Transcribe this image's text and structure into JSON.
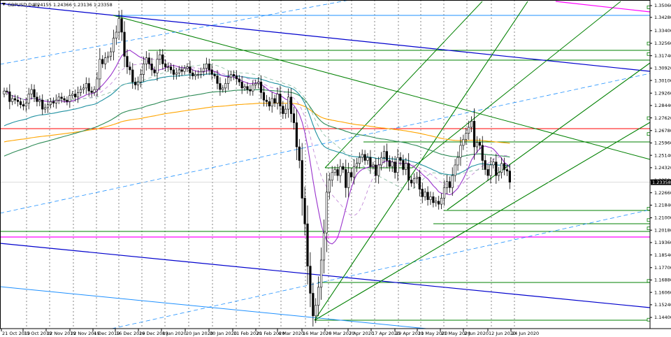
{
  "header": {
    "symbol_label": "GBPUSD,Daily",
    "ohlc_label": "1.24155 1.24366 1.23136 1.23358",
    "arrow_icon": "triangle-down-icon"
  },
  "chart_data": {
    "type": "candlestick",
    "symbol": "GBPUSD",
    "timeframe": "Daily",
    "ohlc_header": {
      "open": 1.24155,
      "high": 1.24366,
      "low": 1.23136,
      "close": 1.23358
    },
    "current_price": 1.23358,
    "current_price_label": "1.23358",
    "ylim": [
      1.138,
      1.361
    ],
    "yticks": [
      "1.35060",
      "1.34280",
      "1.33400",
      "1.32560",
      "1.31740",
      "1.30920",
      "1.30100",
      "1.29260",
      "1.28440",
      "1.27620",
      "1.26780",
      "1.25960",
      "1.25140",
      "1.24320",
      "1.23500",
      "1.22660",
      "1.21840",
      "1.21000",
      "1.20180",
      "1.19360",
      "1.18540",
      "1.17700",
      "1.16880",
      "1.16060",
      "1.15240",
      "1.14400"
    ],
    "xticks": [
      "21 Oct 2019",
      "31 Oct 2019",
      "12 Nov 2019",
      "22 Nov 2019",
      "4 Dec 2019",
      "16 Dec 2019",
      "26 Dec 2019",
      "8 Jan 2020",
      "20 Jan 2020",
      "30 Jan 2020",
      "11 Feb 2020",
      "21 Feb 2020",
      "4 Mar 2020",
      "16 Mar 2020",
      "26 Mar 2020",
      "7 Apr 2020",
      "17 Apr 2020",
      "29 Apr 2020",
      "11 May 2020",
      "21 May 2020",
      "2 Jun 2020",
      "12 Jun 2020",
      "24 Jun 2020"
    ],
    "closes": [
      1.294,
      1.2935,
      1.287,
      1.289,
      1.288,
      1.287,
      1.285,
      1.284,
      1.286,
      1.292,
      1.295,
      1.29,
      1.287,
      1.288,
      1.282,
      1.283,
      1.285,
      1.287,
      1.286,
      1.288,
      1.29,
      1.289,
      1.288,
      1.287,
      1.291,
      1.292,
      1.29,
      1.293,
      1.295,
      1.296,
      1.299,
      1.294,
      1.293,
      1.295,
      1.302,
      1.315,
      1.312,
      1.316,
      1.317,
      1.32,
      1.329,
      1.333,
      1.342,
      1.333,
      1.317,
      1.31,
      1.308,
      1.3,
      1.298,
      1.3,
      1.305,
      1.312,
      1.316,
      1.312,
      1.308,
      1.306,
      1.315,
      1.318,
      1.312,
      1.31,
      1.31,
      1.308,
      1.305,
      1.306,
      1.308,
      1.307,
      1.309,
      1.31,
      1.306,
      1.304,
      1.305,
      1.305,
      1.307,
      1.309,
      1.312,
      1.308,
      1.305,
      1.304,
      1.299,
      1.295,
      1.296,
      1.299,
      1.303,
      1.305,
      1.304,
      1.302,
      1.3,
      1.296,
      1.297,
      1.295,
      1.294,
      1.298,
      1.299,
      1.3,
      1.293,
      1.288,
      1.287,
      1.284,
      1.289,
      1.286,
      1.292,
      1.284,
      1.279,
      1.282,
      1.29,
      1.279,
      1.273,
      1.257,
      1.248,
      1.223,
      1.206,
      1.178,
      1.16,
      1.145,
      1.152,
      1.164,
      1.182,
      1.2,
      1.227,
      1.235,
      1.24,
      1.242,
      1.238,
      1.244,
      1.242,
      1.23,
      1.24,
      1.237,
      1.244,
      1.246,
      1.25,
      1.252,
      1.248,
      1.25,
      1.244,
      1.245,
      1.238,
      1.245,
      1.25,
      1.254,
      1.248,
      1.244,
      1.247,
      1.24,
      1.25,
      1.248,
      1.242,
      1.246,
      1.235,
      1.233,
      1.236,
      1.237,
      1.229,
      1.224,
      1.227,
      1.222,
      1.224,
      1.22,
      1.221,
      1.219,
      1.223,
      1.23,
      1.234,
      1.23,
      1.238,
      1.245,
      1.25,
      1.258,
      1.262,
      1.266,
      1.27,
      1.274,
      1.257,
      1.26,
      1.258,
      1.248,
      1.242,
      1.238,
      1.245,
      1.247,
      1.238,
      1.24,
      1.246,
      1.242,
      1.241,
      1.2336
    ],
    "moving_averages": [
      "MA fast",
      "MA 50",
      "MA 100",
      "MA 200"
    ],
    "horizontal_levels": [
      1.3495,
      1.3255,
      1.3185,
      1.276,
      1.2655,
      1.216,
      1.2085,
      1.203,
      1.2,
      1.1682,
      1.1425
    ],
    "price_marks": [
      1.3495,
      1.3255,
      1.3185,
      1.276,
      1.2655,
      1.216,
      1.2085,
      1.203,
      1.1682,
      1.1425
    ],
    "grid": true,
    "legend": "none"
  },
  "colors": {
    "bull": "#ffffff",
    "bear": "#000000",
    "wick": "#000000",
    "grid": "#000000",
    "red_level": "#ff0000",
    "green": "#008000",
    "magenta": "#ff00ff",
    "blue": "#0000cd",
    "light_blue": "#1e90ff",
    "orange": "#ffa500",
    "violet": "#9932cc",
    "seagreen": "#2e8b57",
    "teal": "#1e90a0",
    "price_tag_bg": "#000000"
  }
}
